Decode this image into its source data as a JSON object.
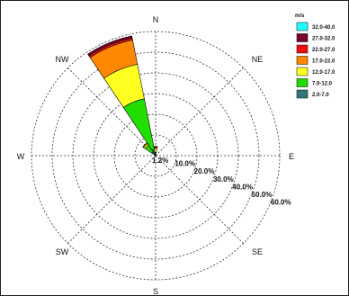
{
  "chart_data": {
    "type": "wind-rose",
    "legend_title": "m/s",
    "legend_placement": "top-right",
    "speed_bins": [
      {
        "label": "32.0-40.0",
        "color": "#22ffff"
      },
      {
        "label": "27.0-32.0",
        "color": "#7a0030"
      },
      {
        "label": "22.0-27.0",
        "color": "#ee1111"
      },
      {
        "label": "17.0-22.0",
        "color": "#ff8800"
      },
      {
        "label": "12.0-17.0",
        "color": "#ffff22"
      },
      {
        "label": "7.0-12.0",
        "color": "#22dd00"
      },
      {
        "label": "2.0-7.0",
        "color": "#337777"
      }
    ],
    "directions": [
      "N",
      "NE",
      "E",
      "SE",
      "S",
      "SW",
      "W",
      "NW"
    ],
    "ring_labels": [
      "1.2%",
      "10.0%",
      "20.0%",
      "30.0%",
      "40.0%",
      "50.0%",
      "60.0%"
    ],
    "ring_values": [
      1.2,
      10,
      20,
      30,
      40,
      50,
      60
    ],
    "rmax": 60,
    "grid": true,
    "sectors": [
      {
        "direction_deg": 337.5,
        "label": "NNW",
        "cumulative_percent": [
          0,
          3,
          28,
          45,
          57,
          58,
          59
        ]
      },
      {
        "direction_deg": 315,
        "label": "NW",
        "cumulative_percent": [
          0,
          2,
          6,
          7,
          7.5,
          7.5,
          7.5
        ]
      },
      {
        "direction_deg": 0,
        "label": "N",
        "cumulative_percent": [
          0,
          0,
          1.5,
          3.5,
          4,
          4.5,
          4.5
        ]
      }
    ]
  }
}
